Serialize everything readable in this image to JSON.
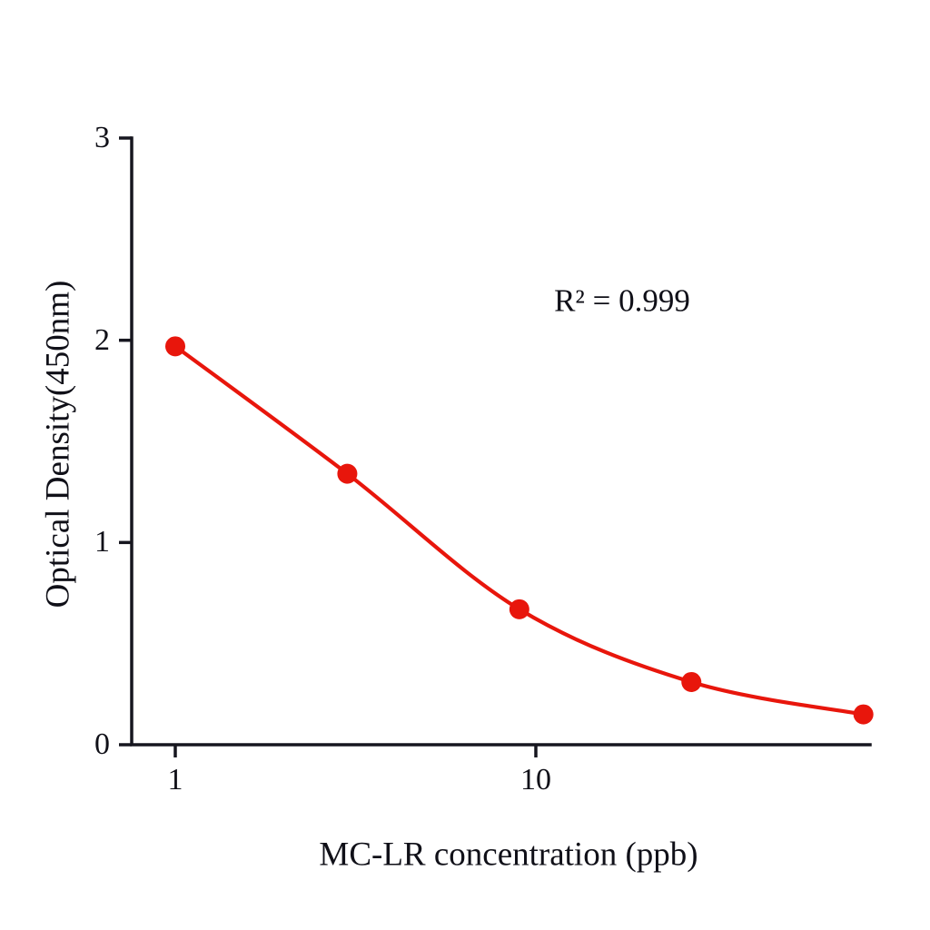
{
  "chart_data": {
    "type": "line",
    "x": [
      1,
      3,
      9,
      27,
      81
    ],
    "y": [
      1.97,
      1.34,
      0.67,
      0.31,
      0.15
    ],
    "x_scale": "log",
    "xlabel": "MC-LR concentration (ppb)",
    "ylabel": "Optical Density(450nm)",
    "annotation": "R² = 0.999",
    "x_ticks": [
      1,
      10
    ],
    "y_ticks": [
      0,
      1,
      2,
      3
    ],
    "ylim": [
      0,
      3
    ],
    "xlim": [
      1,
      90
    ],
    "series_color": "#e8160c",
    "axis_color": "#16161f",
    "marker": "circle",
    "grid": false,
    "legend": "none"
  }
}
